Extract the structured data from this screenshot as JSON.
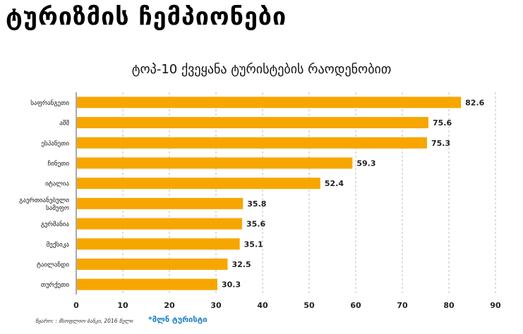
{
  "headline": "ტურიზმის ჩემპიონები",
  "source": "წყარო: : მსოფლიო ბანკი, 2016 წელი",
  "unit_note": "*მლნ ტურისტი",
  "colors": {
    "bar": "#f7a600",
    "grid": "#bdbdbd",
    "axis": "#555555",
    "note": "#1a7fc4"
  },
  "chart_data": {
    "type": "bar",
    "orientation": "horizontal",
    "title": "ტოპ-10 ქვეყანა ტურისტების რაოდენობით",
    "categories": [
      [
        "საფრანგეთი"
      ],
      [
        "აშშ"
      ],
      [
        "ესპანეთი"
      ],
      [
        "ჩინეთი"
      ],
      [
        "იტალია"
      ],
      [
        "გაერთიანებული",
        "სამეფო"
      ],
      [
        "გერმანია"
      ],
      [
        "მექსიკა"
      ],
      [
        "ტაილანდი"
      ],
      [
        "თურქეთი"
      ]
    ],
    "values": [
      82.6,
      75.6,
      75.3,
      59.3,
      52.4,
      35.8,
      35.6,
      35.1,
      32.5,
      30.3
    ],
    "value_labels": [
      "82.6",
      "75.6",
      "75.3",
      "59.3",
      "52.4",
      "35.8",
      "35.6",
      "35.1",
      "32.5",
      "30.3"
    ],
    "xlim": [
      0,
      90
    ],
    "xticks": [
      0,
      10,
      20,
      30,
      40,
      50,
      60,
      70,
      80,
      90
    ],
    "xlabel": "",
    "ylabel": "",
    "grid": true,
    "legend": "none"
  }
}
